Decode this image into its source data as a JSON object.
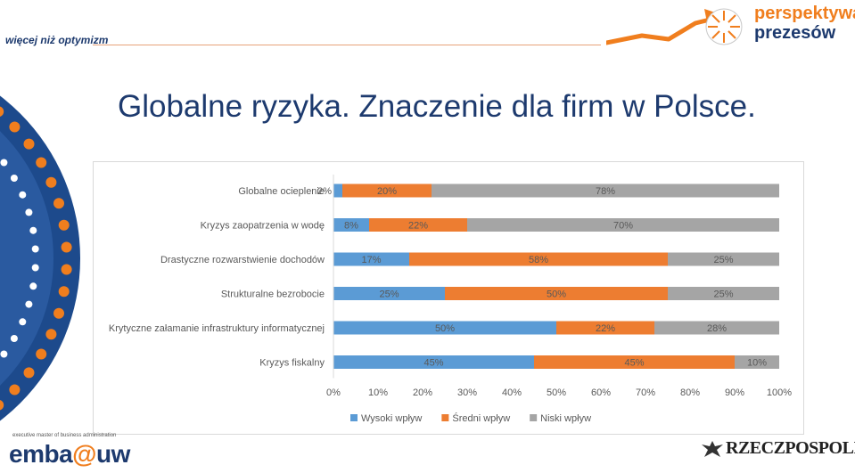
{
  "header": {
    "tagline": "więcej niż optymizm",
    "brand_line1": "perspektywa",
    "brand_line2": "prezesów"
  },
  "slide": {
    "title": "Globalne ryzyka. Znaczenie dla firm w Polsce."
  },
  "footer": {
    "program_text": "executive master of business administration",
    "logo_main": "emba",
    "logo_at": "@",
    "logo_suffix": "uw",
    "partner_logo": "RZECZPOSPOLITA"
  },
  "colors": {
    "title": "#1d3a6e",
    "accent_orange": "#f07e1e",
    "series_high": "#5b9bd5",
    "series_mid": "#ed7d31",
    "series_low": "#a5a5a5"
  },
  "chart_data": {
    "type": "bar",
    "orientation": "horizontal",
    "stacked": true,
    "percent_stacked": true,
    "categories": [
      "Globalne ocieplenie",
      "Kryzys zaopatrzenia w wodę",
      "Drastyczne rozwarstwienie dochodów",
      "Strukturalne bezrobocie",
      "Krytyczne załamanie infrastruktury informatycznej",
      "Kryzys fiskalny"
    ],
    "series": [
      {
        "name": "Wysoki wpływ",
        "color": "#5b9bd5",
        "values": [
          2,
          8,
          17,
          25,
          50,
          45
        ],
        "labels": [
          "2%",
          "8%",
          "17%",
          "25%",
          "50%",
          "45%"
        ]
      },
      {
        "name": "Średni wpływ",
        "color": "#ed7d31",
        "values": [
          20,
          22,
          58,
          50,
          22,
          45
        ],
        "labels": [
          "20%",
          "22%",
          "58%",
          "50%",
          "22%",
          "45%"
        ]
      },
      {
        "name": "Niski wpływ",
        "color": "#a5a5a5",
        "values": [
          78,
          70,
          25,
          25,
          28,
          10
        ],
        "labels": [
          "78%",
          "70%",
          "25%",
          "25%",
          "28%",
          "10%"
        ]
      }
    ],
    "x_ticks": [
      "0%",
      "10%",
      "20%",
      "30%",
      "40%",
      "50%",
      "60%",
      "70%",
      "80%",
      "90%",
      "100%"
    ],
    "xlim": [
      0,
      100
    ],
    "grid": false,
    "legend_position": "bottom"
  }
}
